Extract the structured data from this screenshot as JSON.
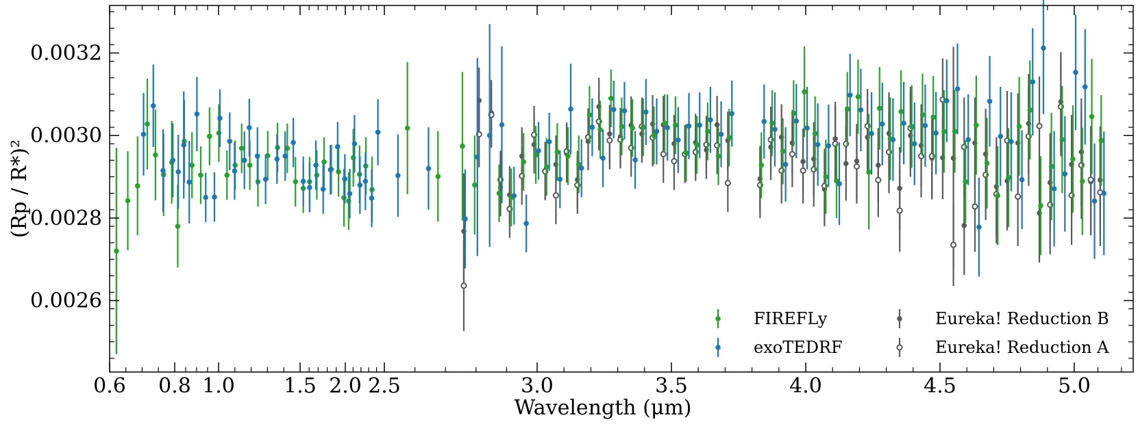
{
  "chart_data": {
    "type": "scatter",
    "xlabel": "Wavelength (μm)",
    "ylabel": "(Rp / R*)²",
    "ylim": [
      0.00245,
      0.00333
    ],
    "x_scale": "piecewise: log-like below 2.7 µm, linear above",
    "x_ticks": [
      0.6,
      0.8,
      1.0,
      1.5,
      2.0,
      2.5,
      3.0,
      3.5,
      4.0,
      4.5,
      5.0
    ],
    "x_tick_labels": [
      "0.6",
      "0.8",
      "1.0",
      "1.5",
      "2.0",
      "2.5",
      "3.0",
      "3.5",
      "4.0",
      "4.5",
      "5.0"
    ],
    "y_ticks": [
      0.0026,
      0.0028,
      0.003,
      0.0032
    ],
    "y_tick_labels": [
      "0.0026",
      "0.0028",
      "0.0030",
      "0.0032"
    ],
    "legend_position": "bottom-right",
    "colors": {
      "FIREFLy": "#2ca02c",
      "exoTEDRF": "#1f77b4",
      "Eureka! Reduction B": "#5a5a5a",
      "Eureka! Reduction A": "#5a5a5a"
    },
    "series": [
      {
        "name": "FIREFLy",
        "marker": "filled",
        "x": [
          0.625,
          0.66,
          0.69,
          0.72,
          0.745,
          0.77,
          0.795,
          0.82,
          0.85,
          0.885,
          0.925,
          0.965,
          1.01,
          1.06,
          1.11,
          1.15,
          1.2,
          1.25,
          1.31,
          1.37,
          1.43,
          1.48,
          1.55,
          1.62,
          1.7,
          1.78,
          1.86,
          1.94,
          2.0,
          2.06,
          2.12,
          2.2,
          2.28,
          2.36,
          2.58,
          2.68,
          2.76,
          2.8,
          2.88,
          2.92,
          2.96,
          3.0,
          3.04,
          3.08,
          3.12,
          3.16,
          3.2,
          3.24,
          3.28,
          3.32,
          3.36,
          3.4,
          3.44,
          3.48,
          3.52,
          3.56,
          3.6,
          3.64,
          3.68,
          3.72,
          3.84,
          3.88,
          3.92,
          3.96,
          4.0,
          4.04,
          4.08,
          4.12,
          4.16,
          4.2,
          4.24,
          4.28,
          4.32,
          4.36,
          4.4,
          4.44,
          4.48,
          4.52,
          4.56,
          4.6,
          4.64,
          4.68,
          4.72,
          4.76,
          4.8,
          4.84,
          4.88,
          4.92,
          4.96,
          5.0,
          5.04,
          5.08,
          5.12
        ],
        "y": [
          0.00272,
          0.002842,
          0.002878,
          0.003028,
          0.002953,
          0.002905,
          0.002935,
          0.00278,
          0.002986,
          0.002928,
          0.002904,
          0.002998,
          0.003006,
          0.002904,
          0.002928,
          0.002969,
          0.002928,
          0.002888,
          0.002951,
          0.002971,
          0.002969,
          0.002888,
          0.002872,
          0.002888,
          0.002904,
          0.002936,
          0.002918,
          0.002912,
          0.002849,
          0.002841,
          0.002946,
          0.002906,
          0.002926,
          0.002869,
          0.003018,
          0.002901,
          0.002974,
          0.00288,
          0.00286,
          0.00285,
          0.002936,
          0.002953,
          0.002924,
          0.00296,
          0.00295,
          0.00293,
          0.00305,
          0.003014,
          0.00309,
          0.003022,
          0.003018,
          0.00302,
          0.003,
          0.00303,
          0.003025,
          0.002958,
          0.002977,
          0.00301,
          0.00295,
          0.002995,
          0.002928,
          0.00303,
          0.002962,
          0.003054,
          0.003106,
          0.003005,
          0.0029,
          0.00289,
          0.003064,
          0.003094,
          0.002912,
          0.003066,
          0.002992,
          0.003058,
          0.003022,
          0.00305,
          0.003044,
          0.00301,
          0.00301,
          0.002888,
          0.003025,
          0.002933,
          0.002854,
          0.002898,
          0.003022,
          0.003062,
          0.00283,
          0.002925,
          0.00299,
          0.002943,
          0.002889,
          0.003046,
          0.002988
        ],
        "yerr": [
          0.00025,
          0.00012,
          0.00012,
          0.00011,
          0.00011,
          0.0001,
          0.0001,
          0.0001,
          0.0001,
          8e-05,
          7e-05,
          7e-05,
          7e-05,
          6e-05,
          6e-05,
          6e-05,
          6e-05,
          6e-05,
          6e-05,
          6e-05,
          6e-05,
          6e-05,
          6e-05,
          6e-05,
          6e-05,
          6e-05,
          6e-05,
          6e-05,
          7e-05,
          7e-05,
          7e-05,
          7e-05,
          7e-05,
          8e-05,
          0.00016,
          0.00011,
          0.00018,
          0.00012,
          7e-05,
          7e-05,
          7e-05,
          7e-05,
          7e-05,
          7e-05,
          7e-05,
          7e-05,
          7e-05,
          7e-05,
          7e-05,
          7e-05,
          7e-05,
          7e-05,
          7e-05,
          7e-05,
          7e-05,
          7e-05,
          7e-05,
          7e-05,
          7e-05,
          7e-05,
          8e-05,
          8e-05,
          8e-05,
          8e-05,
          0.00011,
          9e-05,
          9e-05,
          9e-05,
          9e-05,
          9e-05,
          0.00014,
          0.0001,
          0.0001,
          0.0001,
          0.0001,
          0.0001,
          0.0001,
          0.0001,
          0.0001,
          0.0001,
          0.00012,
          0.00011,
          0.00012,
          0.00012,
          0.00012,
          0.00012,
          0.00012,
          0.00013,
          0.00013,
          0.00013,
          0.00013,
          0.00014,
          0.00011
        ]
      },
      {
        "name": "exoTEDRF",
        "marker": "filled",
        "x": [
          0.7,
          0.73,
          0.76,
          0.79,
          0.81,
          0.835,
          0.86,
          0.895,
          0.935,
          0.975,
          1.0,
          1.06,
          1.09,
          1.15,
          1.18,
          1.23,
          1.28,
          1.35,
          1.4,
          1.45,
          1.52,
          1.59,
          1.66,
          1.74,
          1.82,
          1.9,
          1.98,
          2.04,
          2.1,
          2.17,
          2.24,
          2.32,
          2.4,
          2.54,
          2.64,
          2.76,
          2.8,
          2.84,
          2.88,
          2.92,
          2.96,
          3.0,
          3.04,
          3.08,
          3.12,
          3.16,
          3.2,
          3.24,
          3.28,
          3.32,
          3.36,
          3.4,
          3.44,
          3.48,
          3.52,
          3.56,
          3.6,
          3.64,
          3.68,
          3.72,
          3.84,
          3.88,
          3.92,
          3.96,
          4.0,
          4.04,
          4.08,
          4.12,
          4.16,
          4.2,
          4.24,
          4.28,
          4.32,
          4.36,
          4.4,
          4.44,
          4.48,
          4.52,
          4.56,
          4.6,
          4.64,
          4.68,
          4.72,
          4.76,
          4.8,
          4.84,
          4.88,
          4.92,
          4.96,
          5.0,
          5.04,
          5.08,
          5.12
        ],
        "y": [
          0.003003,
          0.003072,
          0.002915,
          0.00294,
          0.002912,
          0.002977,
          0.002887,
          0.003052,
          0.00285,
          0.002851,
          0.003042,
          0.002986,
          0.002914,
          0.00294,
          0.003019,
          0.00295,
          0.002894,
          0.002943,
          0.00295,
          0.002983,
          0.002889,
          0.002874,
          0.002928,
          0.00287,
          0.002917,
          0.002973,
          0.002895,
          0.002859,
          0.00298,
          0.00288,
          0.002889,
          0.002848,
          0.003008,
          0.002903,
          0.00292,
          0.002798,
          0.002948,
          0.003,
          0.003026,
          0.002854,
          0.002787,
          0.002963,
          0.002985,
          0.002894,
          0.003064,
          0.002921,
          0.00302,
          0.002945,
          0.003063,
          0.00306,
          0.002941,
          0.003057,
          0.00301,
          0.003019,
          0.002989,
          0.003023,
          0.003025,
          0.003038,
          0.003003,
          0.003053,
          0.003034,
          0.003015,
          0.00293,
          0.003035,
          0.003018,
          0.002978,
          0.002975,
          0.002883,
          0.003098,
          0.003062,
          0.003005,
          0.003028,
          0.00299,
          0.00303,
          0.00298,
          0.003024,
          0.003006,
          0.003084,
          0.003113,
          0.00299,
          0.002778,
          0.003083,
          0.002998,
          0.002985,
          0.002893,
          0.00313,
          0.003212,
          0.002871,
          0.002907,
          0.003153,
          0.003118,
          0.002841,
          0.00286
        ],
        "yerr": [
          0.0001,
          0.0001,
          0.0001,
          9e-05,
          9e-05,
          0.00013,
          0.0001,
          9e-05,
          6e-05,
          6e-05,
          7e-05,
          7e-05,
          7e-05,
          7e-05,
          7e-05,
          7e-05,
          6e-05,
          6e-05,
          6e-05,
          6e-05,
          6e-05,
          6e-05,
          6e-05,
          6e-05,
          6e-05,
          6e-05,
          6e-05,
          6e-05,
          7e-05,
          7e-05,
          7e-05,
          7e-05,
          8e-05,
          0.0001,
          0.0001,
          0.00012,
          0.00024,
          0.00027,
          0.00019,
          7e-05,
          7e-05,
          7e-05,
          7e-05,
          7e-05,
          0.00011,
          7e-05,
          7e-05,
          7e-05,
          7e-05,
          7e-05,
          7e-05,
          8e-05,
          8e-05,
          8e-05,
          8e-05,
          8e-05,
          8e-05,
          8e-05,
          8e-05,
          8e-05,
          9e-05,
          9e-05,
          9e-05,
          9e-05,
          0.0001,
          0.0001,
          0.0001,
          0.0001,
          0.0001,
          0.0001,
          0.0001,
          0.0001,
          0.0001,
          0.0001,
          0.0001,
          0.0001,
          0.0001,
          0.0001,
          0.00011,
          0.00011,
          0.00012,
          0.00011,
          0.00012,
          0.00012,
          0.00012,
          0.00013,
          0.00016,
          0.00014,
          0.00014,
          0.00014,
          0.00014,
          0.00014,
          0.00015
        ]
      },
      {
        "name": "Eureka! Reduction B",
        "marker": "filled",
        "x": [
          2.76,
          2.81,
          2.85,
          2.88,
          2.91,
          2.95,
          2.99,
          3.03,
          3.07,
          3.11,
          3.15,
          3.19,
          3.23,
          3.27,
          3.31,
          3.35,
          3.39,
          3.43,
          3.47,
          3.51,
          3.55,
          3.59,
          3.63,
          3.67,
          3.71,
          3.83,
          3.87,
          3.91,
          3.95,
          3.99,
          4.03,
          4.07,
          4.11,
          4.15,
          4.19,
          4.23,
          4.27,
          4.31,
          4.35,
          4.39,
          4.43,
          4.47,
          4.51,
          4.55,
          4.59,
          4.63,
          4.67,
          4.71,
          4.75,
          4.79,
          4.83,
          4.87,
          4.91,
          4.95,
          4.99,
          5.03,
          5.07,
          5.11
        ],
        "y": [
          0.002768,
          0.003085,
          0.003055,
          0.002874,
          0.002856,
          0.00295,
          0.002978,
          0.002915,
          0.00293,
          0.002956,
          0.002893,
          0.002986,
          0.00307,
          0.003004,
          0.002997,
          0.003025,
          0.003004,
          0.003028,
          0.003026,
          0.00298,
          0.002955,
          0.002983,
          0.002965,
          0.003026,
          0.002988,
          0.002895,
          0.002972,
          0.002996,
          0.002982,
          0.002937,
          0.002943,
          0.00287,
          0.002992,
          0.002932,
          0.002938,
          0.002996,
          0.002928,
          0.003005,
          0.002872,
          0.003,
          0.002976,
          0.002945,
          0.002946,
          0.002945,
          0.002782,
          0.002982,
          0.002955,
          0.002876,
          0.00289,
          0.002982,
          0.003029,
          0.002812,
          0.002886,
          0.003082,
          0.00293,
          0.00296,
          0.002888,
          0.002892
        ],
        "yerr": [
          0.00014,
          8e-05,
          8e-05,
          7e-05,
          7e-05,
          7e-05,
          7e-05,
          7e-05,
          7e-05,
          7e-05,
          7e-05,
          7e-05,
          7e-05,
          7e-05,
          7e-05,
          7e-05,
          7e-05,
          7e-05,
          7e-05,
          7e-05,
          7e-05,
          7e-05,
          7e-05,
          7e-05,
          7e-05,
          8e-05,
          8e-05,
          8e-05,
          8e-05,
          8e-05,
          9e-05,
          9e-05,
          9e-05,
          9e-05,
          9e-05,
          9e-05,
          9e-05,
          0.0001,
          0.0001,
          0.0001,
          0.0001,
          0.0001,
          0.0001,
          0.00027,
          0.00012,
          0.00011,
          0.00011,
          0.00012,
          0.00012,
          0.00012,
          0.00012,
          0.00012,
          0.00012,
          0.00012,
          0.00012,
          0.00013,
          0.00013,
          0.00013
        ]
      },
      {
        "name": "Eureka! Reduction A",
        "marker": "open",
        "x": [
          2.76,
          2.81,
          2.85,
          2.88,
          2.91,
          2.95,
          2.99,
          3.03,
          3.07,
          3.11,
          3.15,
          3.19,
          3.23,
          3.27,
          3.31,
          3.35,
          3.39,
          3.43,
          3.47,
          3.51,
          3.55,
          3.59,
          3.63,
          3.67,
          3.71,
          3.83,
          3.87,
          3.91,
          3.95,
          3.99,
          4.03,
          4.07,
          4.11,
          4.15,
          4.19,
          4.23,
          4.27,
          4.31,
          4.35,
          4.39,
          4.43,
          4.47,
          4.51,
          4.55,
          4.59,
          4.63,
          4.67,
          4.71,
          4.75,
          4.79,
          4.83,
          4.87,
          4.91,
          4.95,
          4.99,
          5.03,
          5.07,
          5.11
        ],
        "y": [
          0.002636,
          0.003003,
          0.00305,
          0.002893,
          0.002822,
          0.002902,
          0.003002,
          0.002913,
          0.002855,
          0.002962,
          0.00288,
          0.002996,
          0.003034,
          0.002988,
          0.00299,
          0.00297,
          0.003022,
          0.002995,
          0.002955,
          0.002938,
          0.002955,
          0.00296,
          0.002978,
          0.002976,
          0.002885,
          0.00288,
          0.00299,
          0.002915,
          0.002955,
          0.002915,
          0.002918,
          0.002878,
          0.00298,
          0.00298,
          0.002925,
          0.003023,
          0.002892,
          0.00296,
          0.002818,
          0.003018,
          0.00295,
          0.00295,
          0.003087,
          0.002735,
          0.002972,
          0.002828,
          0.002905,
          0.002858,
          0.002988,
          0.002852,
          0.002998,
          0.003023,
          0.002832,
          0.00307,
          0.002855,
          0.002928,
          0.002893,
          0.002862
        ],
        "yerr": [
          0.00011,
          8e-05,
          8e-05,
          7e-05,
          7e-05,
          7e-05,
          7e-05,
          7e-05,
          7e-05,
          7e-05,
          7e-05,
          7e-05,
          7e-05,
          7e-05,
          7e-05,
          7e-05,
          7e-05,
          7e-05,
          7e-05,
          7e-05,
          7e-05,
          7e-05,
          7e-05,
          7e-05,
          7e-05,
          8e-05,
          8e-05,
          8e-05,
          8e-05,
          8e-05,
          9e-05,
          9e-05,
          9e-05,
          9e-05,
          9e-05,
          9e-05,
          9e-05,
          0.0001,
          0.0001,
          0.0001,
          0.0001,
          0.0001,
          0.0001,
          0.0001,
          0.00012,
          0.00011,
          0.00011,
          0.00012,
          0.00012,
          0.00012,
          0.00012,
          0.00012,
          0.00012,
          0.00012,
          0.00012,
          0.00013,
          0.00013,
          0.00013
        ]
      }
    ]
  }
}
